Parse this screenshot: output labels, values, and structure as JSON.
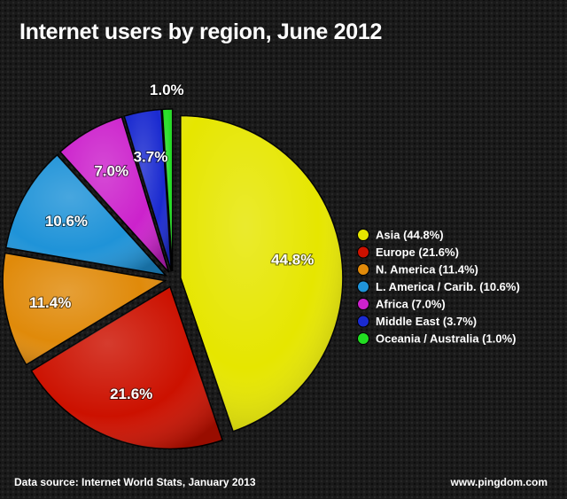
{
  "chart_data": {
    "type": "pie",
    "title": "Internet users by region, June 2012",
    "unit": "%",
    "series": [
      {
        "name": "Asia",
        "value": 44.8,
        "label": "44.8%",
        "legend": "Asia (44.8%)",
        "color": "#e6e600"
      },
      {
        "name": "Europe",
        "value": 21.6,
        "label": "21.6%",
        "legend": "Europe (21.6%)",
        "color": "#cc1100"
      },
      {
        "name": "N. America",
        "value": 11.4,
        "label": "11.4%",
        "legend": "N. America (11.4%)",
        "color": "#e08a0a"
      },
      {
        "name": "L. America / Carib.",
        "value": 10.6,
        "label": "10.6%",
        "legend": "L. America / Carib. (10.6%)",
        "color": "#1f93d8"
      },
      {
        "name": "Africa",
        "value": 7.0,
        "label": "7.0%",
        "legend": "Africa (7.0%)",
        "color": "#cc22cc"
      },
      {
        "name": "Middle East",
        "value": 3.7,
        "label": "3.7%",
        "legend": "Middle East (3.7%)",
        "color": "#1a2ad0"
      },
      {
        "name": "Oceania / Australia",
        "value": 1.0,
        "label": "1.0%",
        "legend": "Oceania / Australia (1.0%)",
        "color": "#22dd22"
      }
    ],
    "legend_position": "right"
  },
  "footer": {
    "source": "Data source: Internet World Stats, January 2013",
    "site": "www.pingdom.com"
  }
}
